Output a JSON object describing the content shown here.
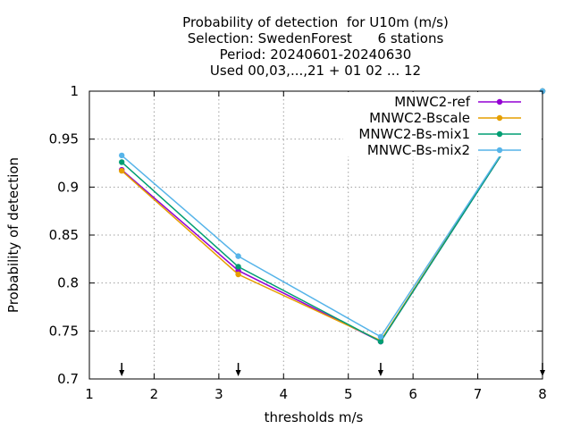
{
  "chart_data": {
    "type": "line",
    "title_lines": [
      "Probability of detection  for U10m (m/s)",
      "Selection: SwedenForest      6 stations",
      "Period: 20240601-20240630",
      "Used 00,03,...,21 + 01 02 ... 12"
    ],
    "xlabel": "thresholds m/s",
    "ylabel": "Probability of detection",
    "xlim": [
      1,
      8
    ],
    "ylim": [
      0.7,
      1.0
    ],
    "x_ticks": [
      "1",
      "2",
      "3",
      "4",
      "5",
      "6",
      "7",
      "8"
    ],
    "y_ticks": [
      "0.7",
      "0.75",
      "0.8",
      "0.85",
      "0.9",
      "0.95",
      "1"
    ],
    "grid": true,
    "legend_position": "top-right",
    "threshold_markers_x": [
      1.5,
      3.3,
      5.5,
      8.0
    ],
    "series": [
      {
        "name": "MNWC2-ref",
        "color": "#9400d3",
        "x": [
          1.5,
          3.3,
          5.5,
          8.0
        ],
        "y": [
          0.918,
          0.813,
          0.739,
          1.0
        ]
      },
      {
        "name": "MNWC2-Bscale",
        "color": "#e69f00",
        "x": [
          1.5,
          3.3,
          5.5,
          8.0
        ],
        "y": [
          0.917,
          0.809,
          0.74,
          1.0
        ]
      },
      {
        "name": "MNWC2-Bs-mix1",
        "color": "#009e73",
        "x": [
          1.5,
          3.3,
          5.5,
          8.0
        ],
        "y": [
          0.926,
          0.817,
          0.739,
          1.0
        ]
      },
      {
        "name": "MNWC-Bs-mix2",
        "color": "#56b4e9",
        "x": [
          1.5,
          3.3,
          5.5,
          8.0
        ],
        "y": [
          0.933,
          0.828,
          0.744,
          1.0
        ]
      }
    ]
  }
}
